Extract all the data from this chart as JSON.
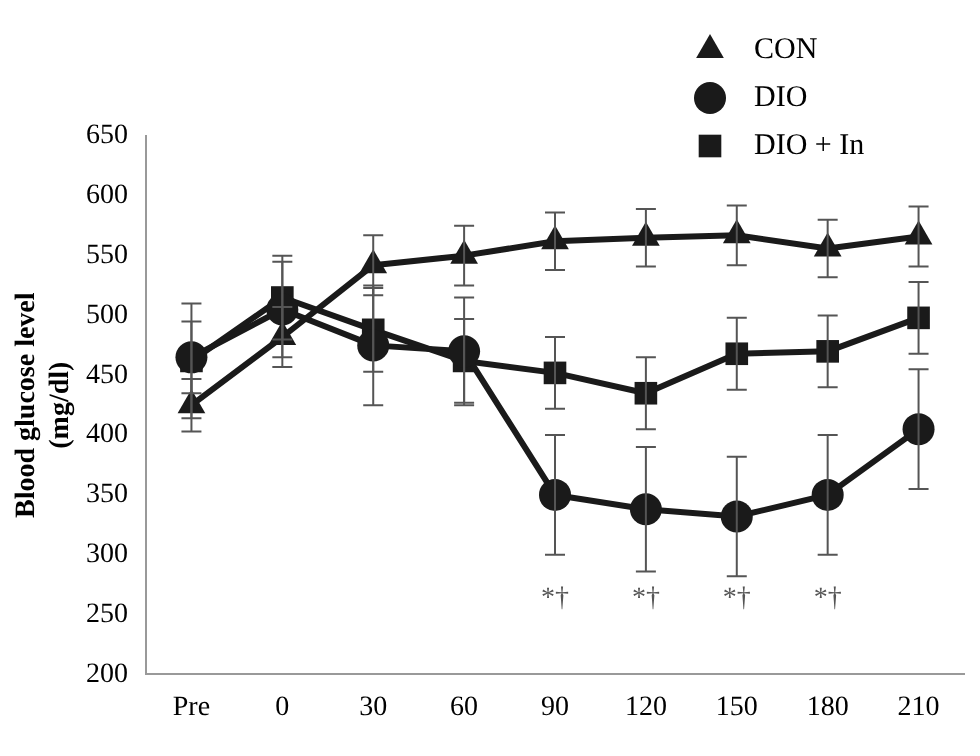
{
  "chart_data": {
    "type": "line",
    "ylabel": "Blood glucose level (mg/dl)",
    "categories": [
      "Pre",
      "0",
      "30",
      "60",
      "90",
      "120",
      "150",
      "180",
      "210"
    ],
    "ylim": [
      200,
      650
    ],
    "yticks": [
      200,
      250,
      300,
      350,
      400,
      450,
      500,
      550,
      600,
      650
    ],
    "grid": false,
    "legend": "top right",
    "line_style": "solid",
    "series": [
      {
        "name": "CON",
        "color": "#1a1a1a",
        "marker": "triangle",
        "values": [
          425,
          482,
          542,
          550,
          562,
          565,
          567,
          556,
          566
        ],
        "errors": [
          22,
          25,
          25,
          25,
          24,
          24,
          25,
          24,
          25
        ]
      },
      {
        "name": "DIO",
        "color": "#1a1a1a",
        "marker": "circle",
        "values": [
          465,
          505,
          475,
          470,
          350,
          338,
          332,
          350,
          405
        ],
        "errors": [
          30,
          40,
          50,
          45,
          50,
          52,
          50,
          50,
          50
        ]
      },
      {
        "name": "DIO + In",
        "color": "#1a1a1a",
        "marker": "square",
        "values": [
          462,
          515,
          488,
          462,
          452,
          435,
          468,
          470,
          498
        ],
        "errors": [
          48,
          35,
          35,
          35,
          30,
          30,
          30,
          30,
          30
        ]
      }
    ],
    "annotations": [
      "*†",
      "*†",
      "*†",
      "*†"
    ]
  }
}
